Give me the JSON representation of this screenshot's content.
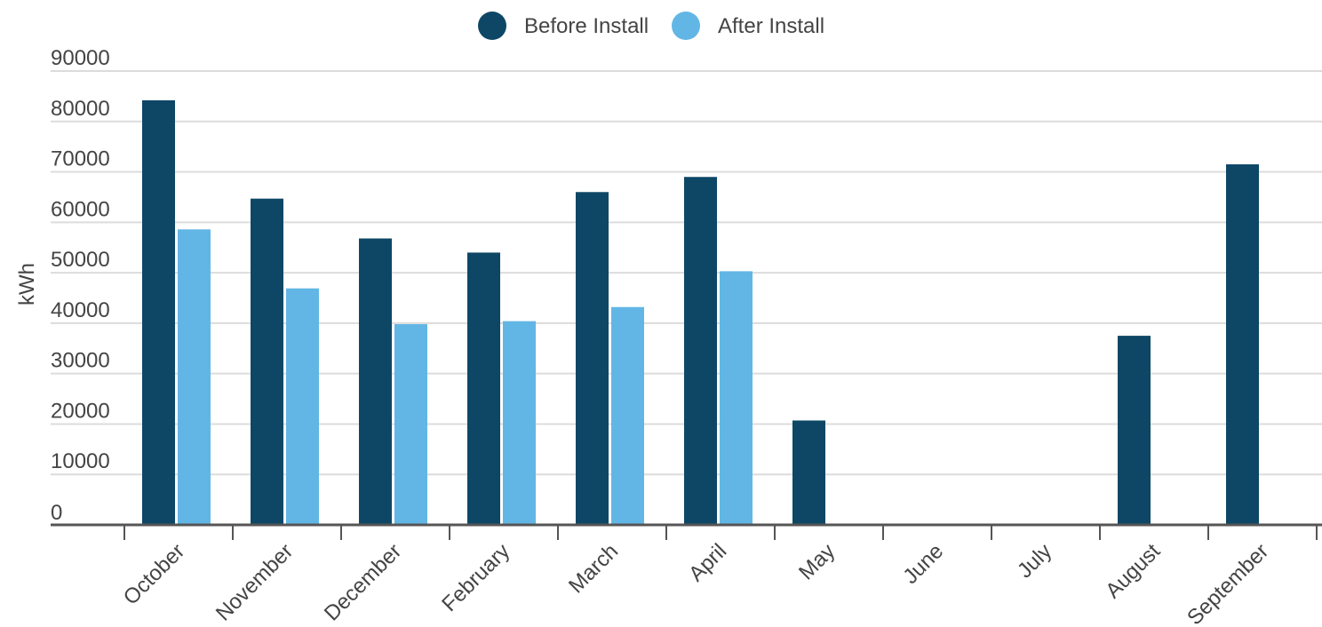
{
  "chart_data": {
    "type": "bar",
    "categories": [
      "October",
      "November",
      "December",
      "February",
      "March",
      "April",
      "May",
      "June",
      "July",
      "August",
      "September"
    ],
    "series": [
      {
        "name": "Before Install",
        "color": "#0e4766",
        "values": [
          84200,
          64700,
          56800,
          54000,
          66000,
          69000,
          20700,
          0,
          0,
          37500,
          71500
        ]
      },
      {
        "name": "After Install",
        "color": "#62b6e5",
        "values": [
          58600,
          46900,
          39800,
          40400,
          43200,
          50300,
          0,
          0,
          0,
          0,
          0
        ]
      }
    ],
    "ylabel": "kWh",
    "xlabel": "",
    "title": "",
    "ylim": [
      0,
      90000
    ],
    "yticks": [
      0,
      10000,
      20000,
      30000,
      40000,
      50000,
      60000,
      70000,
      80000,
      90000
    ],
    "grid": true,
    "legend": "top-center"
  }
}
